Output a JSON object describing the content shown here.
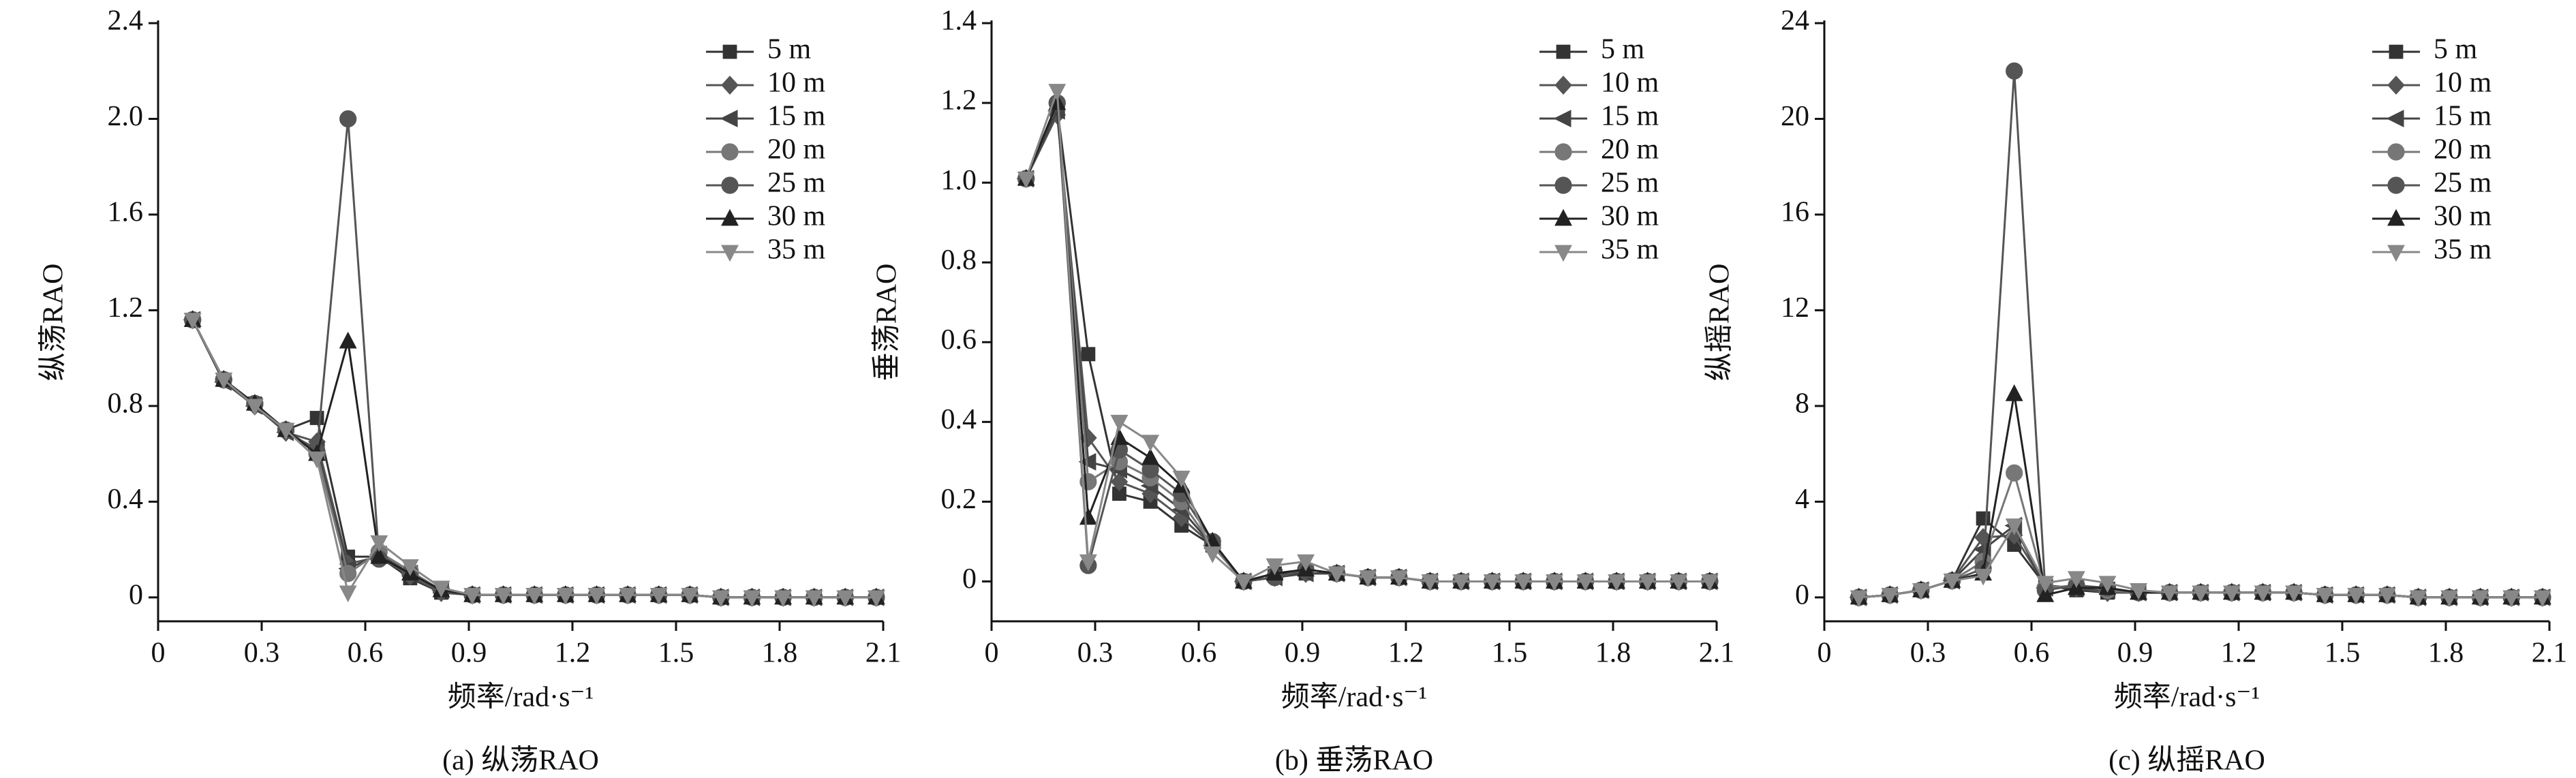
{
  "chart_data": [
    {
      "type": "line",
      "caption": "(a) 纵荡RAO",
      "x_label": "频率/rad·s⁻¹",
      "y_label": "纵荡RAO",
      "legend": "upper right",
      "xlim": [
        0,
        2.1
      ],
      "xticks": [
        0,
        0.3,
        0.6,
        0.9,
        1.2,
        1.5,
        1.8,
        2.1
      ],
      "ylim": [
        -0.1,
        2.4
      ],
      "yticks": [
        0,
        0.4,
        0.8,
        1.2,
        1.6,
        {
          "value": 2,
          "label": "2.0"
        },
        2.4
      ],
      "x": [
        0.1,
        0.19,
        0.28,
        0.37,
        0.46,
        0.55,
        0.64,
        0.73,
        0.82,
        0.91,
        1.0,
        1.09,
        1.18,
        1.27,
        1.36,
        1.45,
        1.54,
        1.63,
        1.72,
        1.81,
        1.9,
        1.99,
        2.08
      ],
      "series": [
        {
          "name": "5 m",
          "color": "#333333",
          "marker": "square",
          "values": [
            1.16,
            0.91,
            0.81,
            0.7,
            0.75,
            0.17,
            0.17,
            0.08,
            0.02,
            0.01,
            0.01,
            0.01,
            0.01,
            0.01,
            0.01,
            0.01,
            0.01,
            0,
            0,
            0,
            0,
            0,
            0
          ]
        },
        {
          "name": "10 m",
          "color": "#555555",
          "marker": "diamond",
          "values": [
            1.16,
            0.91,
            0.8,
            0.69,
            0.65,
            0.14,
            0.17,
            0.09,
            0.02,
            0.01,
            0.01,
            0.01,
            0.01,
            0.01,
            0.01,
            0.01,
            0.01,
            0,
            0,
            0,
            0,
            0,
            0
          ]
        },
        {
          "name": "15 m",
          "color": "#444444",
          "marker": "left",
          "values": [
            1.16,
            0.9,
            0.8,
            0.69,
            0.62,
            0.12,
            0.18,
            0.1,
            0.03,
            0.01,
            0.01,
            0.01,
            0.01,
            0.01,
            0.01,
            0.01,
            0.01,
            0,
            0,
            0,
            0,
            0,
            0
          ]
        },
        {
          "name": "20 m",
          "color": "#777777",
          "marker": "circle",
          "values": [
            1.16,
            0.91,
            0.81,
            0.7,
            0.6,
            0.1,
            0.19,
            0.11,
            0.03,
            0.01,
            0.01,
            0.01,
            0.01,
            0.01,
            0.01,
            0.01,
            0.01,
            0,
            0,
            0,
            0,
            0,
            0
          ]
        },
        {
          "name": "25 m",
          "color": "#555555",
          "marker": "circle",
          "values": [
            1.16,
            0.91,
            0.81,
            0.7,
            0.61,
            2.0,
            0.16,
            0.1,
            0.03,
            0.01,
            0.01,
            0.01,
            0.01,
            0.01,
            0.01,
            0.01,
            0.01,
            0,
            0,
            0,
            0,
            0,
            0
          ]
        },
        {
          "name": "30 m",
          "color": "#222222",
          "marker": "up",
          "values": [
            1.16,
            0.91,
            0.81,
            0.7,
            0.6,
            1.07,
            0.17,
            0.1,
            0.03,
            0.01,
            0.01,
            0.01,
            0.01,
            0.01,
            0.01,
            0.01,
            0.01,
            0,
            0,
            0,
            0,
            0,
            0
          ]
        },
        {
          "name": "35 m",
          "color": "#888888",
          "marker": "down",
          "values": [
            1.16,
            0.91,
            0.8,
            0.7,
            0.58,
            0.02,
            0.23,
            0.13,
            0.04,
            0.01,
            0.01,
            0.01,
            0.01,
            0.01,
            0.01,
            0.01,
            0.01,
            0,
            0,
            0,
            0,
            0,
            0
          ]
        }
      ]
    },
    {
      "type": "line",
      "caption": "(b) 垂荡RAO",
      "x_label": "频率/rad·s⁻¹",
      "y_label": "垂荡RAO",
      "legend": "upper right",
      "xlim": [
        0,
        2.1
      ],
      "xticks": [
        0,
        0.3,
        0.6,
        0.9,
        1.2,
        1.5,
        1.8,
        2.1
      ],
      "ylim": [
        -0.1,
        1.4
      ],
      "yticks": [
        0,
        0.2,
        0.4,
        0.6,
        0.8,
        {
          "value": 1,
          "label": "1.0"
        },
        1.2,
        1.4
      ],
      "x": [
        0.1,
        0.19,
        0.28,
        0.37,
        0.46,
        0.55,
        0.64,
        0.73,
        0.82,
        0.91,
        1.0,
        1.09,
        1.18,
        1.27,
        1.36,
        1.45,
        1.54,
        1.63,
        1.72,
        1.81,
        1.9,
        1.99,
        2.08
      ],
      "series": [
        {
          "name": "5 m",
          "color": "#333333",
          "marker": "square",
          "values": [
            1.01,
            1.19,
            0.57,
            0.22,
            0.2,
            0.14,
            0.09,
            0,
            0.02,
            0.02,
            0.02,
            0.01,
            0.01,
            0,
            0,
            0,
            0,
            0,
            0,
            0,
            0,
            0,
            0
          ]
        },
        {
          "name": "10 m",
          "color": "#555555",
          "marker": "diamond",
          "values": [
            1.01,
            1.17,
            0.36,
            0.25,
            0.22,
            0.16,
            0.09,
            0,
            0.01,
            0.02,
            0.02,
            0.01,
            0.01,
            0,
            0,
            0,
            0,
            0,
            0,
            0,
            0,
            0,
            0
          ]
        },
        {
          "name": "15 m",
          "color": "#444444",
          "marker": "left",
          "values": [
            1.01,
            1.18,
            0.3,
            0.28,
            0.24,
            0.18,
            0.09,
            0,
            0.01,
            0.02,
            0.02,
            0.01,
            0.01,
            0,
            0,
            0,
            0,
            0,
            0,
            0,
            0,
            0,
            0
          ]
        },
        {
          "name": "20 m",
          "color": "#777777",
          "marker": "circle",
          "values": [
            1.01,
            1.2,
            0.25,
            0.3,
            0.26,
            0.2,
            0.09,
            0,
            0.01,
            0.03,
            0.02,
            0.01,
            0.01,
            0,
            0,
            0,
            0,
            0,
            0,
            0,
            0,
            0,
            0
          ]
        },
        {
          "name": "25 m",
          "color": "#555555",
          "marker": "circle",
          "values": [
            1.01,
            1.2,
            0.04,
            0.33,
            0.28,
            0.22,
            0.1,
            0,
            0.01,
            0.03,
            0.02,
            0.01,
            0.01,
            0,
            0,
            0,
            0,
            0,
            0,
            0,
            0,
            0,
            0
          ]
        },
        {
          "name": "30 m",
          "color": "#222222",
          "marker": "up",
          "values": [
            1.01,
            1.2,
            0.16,
            0.36,
            0.31,
            0.24,
            0.1,
            0,
            0.02,
            0.03,
            0.02,
            0.01,
            0.01,
            0,
            0,
            0,
            0,
            0,
            0,
            0,
            0,
            0,
            0
          ]
        },
        {
          "name": "35 m",
          "color": "#888888",
          "marker": "down",
          "values": [
            1.01,
            1.23,
            0.05,
            0.4,
            0.35,
            0.26,
            0.07,
            0,
            0.04,
            0.05,
            0.02,
            0.01,
            0.01,
            0,
            0,
            0,
            0,
            0,
            0,
            0,
            0,
            0,
            0
          ]
        }
      ]
    },
    {
      "type": "line",
      "caption": "(c) 纵摇RAO",
      "x_label": "频率/rad·s⁻¹",
      "y_label": "纵摇RAO",
      "legend": "upper right",
      "xlim": [
        0,
        2.1
      ],
      "xticks": [
        0,
        0.3,
        0.6,
        0.9,
        1.2,
        1.5,
        1.8,
        2.1
      ],
      "ylim": [
        -1,
        24
      ],
      "yticks": [
        0,
        4,
        8,
        12,
        16,
        20,
        24
      ],
      "x": [
        0.1,
        0.19,
        0.28,
        0.37,
        0.46,
        0.55,
        0.64,
        0.73,
        0.82,
        0.91,
        1.0,
        1.09,
        1.18,
        1.27,
        1.36,
        1.45,
        1.54,
        1.63,
        1.72,
        1.81,
        1.9,
        1.99,
        2.08
      ],
      "series": [
        {
          "name": "5 m",
          "color": "#333333",
          "marker": "square",
          "values": [
            0,
            0.1,
            0.3,
            0.7,
            3.3,
            2.2,
            0.5,
            0.3,
            0.2,
            0.2,
            0.2,
            0.2,
            0.2,
            0.2,
            0.2,
            0.1,
            0.1,
            0.1,
            0,
            0,
            0,
            0,
            0
          ]
        },
        {
          "name": "10 m",
          "color": "#555555",
          "marker": "diamond",
          "values": [
            0,
            0.1,
            0.3,
            0.7,
            2.5,
            2.6,
            0.5,
            0.4,
            0.2,
            0.2,
            0.2,
            0.2,
            0.2,
            0.2,
            0.2,
            0.1,
            0.1,
            0.1,
            0,
            0,
            0,
            0,
            0
          ]
        },
        {
          "name": "15 m",
          "color": "#444444",
          "marker": "left",
          "values": [
            0,
            0.1,
            0.3,
            0.7,
            2.0,
            3.0,
            0.4,
            0.4,
            0.3,
            0.2,
            0.2,
            0.2,
            0.2,
            0.2,
            0.2,
            0.1,
            0.1,
            0.1,
            0,
            0,
            0,
            0,
            0
          ]
        },
        {
          "name": "20 m",
          "color": "#777777",
          "marker": "circle",
          "values": [
            0,
            0.1,
            0.3,
            0.7,
            1.5,
            5.2,
            0.4,
            0.5,
            0.3,
            0.2,
            0.2,
            0.2,
            0.2,
            0.2,
            0.2,
            0.1,
            0.1,
            0.1,
            0,
            0,
            0,
            0,
            0
          ]
        },
        {
          "name": "25 m",
          "color": "#555555",
          "marker": "circle",
          "values": [
            0,
            0.1,
            0.3,
            0.7,
            1.2,
            22.0,
            0.3,
            0.5,
            0.4,
            0.2,
            0.2,
            0.2,
            0.2,
            0.2,
            0.2,
            0.1,
            0.1,
            0.1,
            0,
            0,
            0,
            0,
            0
          ]
        },
        {
          "name": "30 m",
          "color": "#222222",
          "marker": "up",
          "values": [
            0,
            0.1,
            0.3,
            0.7,
            1.0,
            8.5,
            0.1,
            0.4,
            0.4,
            0.2,
            0.2,
            0.2,
            0.2,
            0.2,
            0.2,
            0.1,
            0.1,
            0.1,
            0,
            0,
            0,
            0,
            0
          ]
        },
        {
          "name": "35 m",
          "color": "#888888",
          "marker": "down",
          "values": [
            0,
            0.1,
            0.3,
            0.7,
            0.9,
            3.0,
            0.6,
            0.8,
            0.6,
            0.3,
            0.2,
            0.2,
            0.2,
            0.2,
            0.2,
            0.1,
            0.1,
            0.1,
            0,
            0,
            0,
            0,
            0
          ]
        }
      ]
    }
  ]
}
